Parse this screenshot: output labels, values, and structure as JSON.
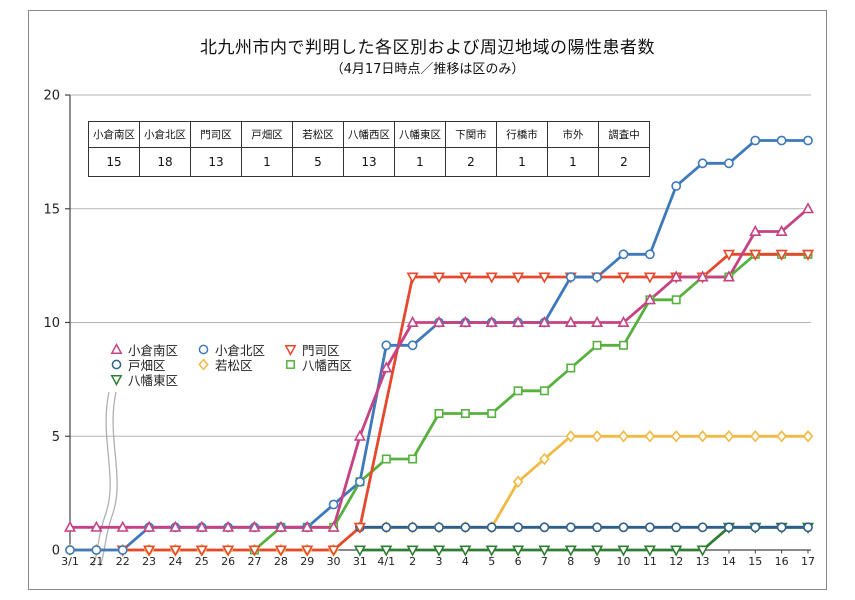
{
  "figure": {
    "title": "北九州市内で判明した各区別および周辺地域の陽性患者数",
    "subtitle": "（4月17日時点／推移は区のみ）"
  },
  "summary_table": {
    "headers": [
      "小倉南区",
      "小倉北区",
      "門司区",
      "戸畑区",
      "若松区",
      "八幡西区",
      "八幡東区",
      "下関市",
      "行橋市",
      "市外",
      "調査中"
    ],
    "values": [
      "15",
      "18",
      "13",
      "1",
      "5",
      "13",
      "1",
      "2",
      "1",
      "1",
      "2"
    ]
  },
  "legend": {
    "items": [
      "小倉南区",
      "小倉北区",
      "門司区",
      "戸畑区",
      "若松区",
      "八幡西区",
      "八幡東区"
    ]
  },
  "chart_data": {
    "type": "line",
    "title": "北九州市内で判明した各区別および周辺地域の陽性患者数",
    "subtitle": "（4月17日時点／推移は区のみ）",
    "x_labels": [
      "3/1",
      "21",
      "22",
      "23",
      "24",
      "25",
      "26",
      "27",
      "28",
      "29",
      "30",
      "31",
      "4/1",
      "2",
      "3",
      "4",
      "5",
      "6",
      "7",
      "8",
      "9",
      "10",
      "11",
      "12",
      "13",
      "14",
      "15",
      "16",
      "17"
    ],
    "y_ticks": [
      0,
      5,
      10,
      15,
      20
    ],
    "ylim": [
      0,
      20
    ],
    "grid": true,
    "axis_break_between": [
      "3/1",
      "21"
    ],
    "series": [
      {
        "name": "若松区",
        "marker": "diamond",
        "color": "#f0ba45",
        "values": [
          0,
          0,
          0,
          0,
          0,
          0,
          0,
          0,
          0,
          0,
          0,
          1,
          1,
          1,
          1,
          1,
          1,
          3,
          4,
          5,
          5,
          5,
          5,
          5,
          5,
          5,
          5,
          5,
          5
        ]
      },
      {
        "name": "八幡東区",
        "marker": "triangle-down",
        "color": "#2f7d32",
        "values": [
          null,
          null,
          null,
          null,
          null,
          null,
          null,
          null,
          null,
          null,
          null,
          0,
          0,
          0,
          0,
          0,
          0,
          0,
          0,
          0,
          0,
          0,
          0,
          0,
          0,
          1,
          1,
          1,
          1
        ]
      },
      {
        "name": "戸畑区",
        "marker": "circle",
        "color": "#2d5f8a",
        "values": [
          null,
          null,
          null,
          null,
          null,
          null,
          null,
          null,
          null,
          null,
          null,
          1,
          1,
          1,
          1,
          1,
          1,
          1,
          1,
          1,
          1,
          1,
          1,
          1,
          1,
          1,
          1,
          1,
          1
        ]
      },
      {
        "name": "八幡西区",
        "marker": "square",
        "color": "#57b13e",
        "values": [
          null,
          null,
          null,
          null,
          null,
          null,
          null,
          0,
          1,
          1,
          1,
          3,
          4,
          4,
          6,
          6,
          6,
          7,
          7,
          8,
          9,
          9,
          11,
          11,
          12,
          12,
          13,
          13,
          13
        ]
      },
      {
        "name": "門司区",
        "marker": "triangle-down",
        "color": "#e5492d",
        "values": [
          null,
          null,
          0,
          0,
          0,
          0,
          0,
          0,
          0,
          0,
          0,
          1,
          null,
          12,
          12,
          12,
          12,
          12,
          12,
          12,
          12,
          12,
          12,
          12,
          12,
          13,
          13,
          13,
          13
        ]
      },
      {
        "name": "小倉北区",
        "marker": "circle",
        "color": "#3d79bb",
        "values": [
          0,
          0,
          0,
          1,
          1,
          1,
          1,
          1,
          1,
          1,
          2,
          3,
          9,
          9,
          10,
          10,
          10,
          10,
          10,
          12,
          12,
          13,
          13,
          16,
          17,
          17,
          18,
          18,
          18
        ]
      },
      {
        "name": "小倉南区",
        "marker": "triangle-up",
        "color": "#c64284",
        "values": [
          1,
          1,
          1,
          1,
          1,
          1,
          1,
          1,
          1,
          1,
          1,
          5,
          8,
          10,
          10,
          10,
          10,
          10,
          10,
          10,
          10,
          10,
          11,
          12,
          12,
          12,
          14,
          14,
          15
        ]
      }
    ]
  }
}
